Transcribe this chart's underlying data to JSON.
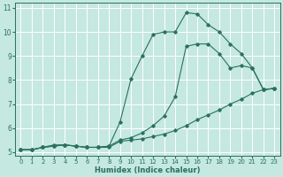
{
  "xlabel": "Humidex (Indice chaleur)",
  "bg_color": "#c5e8e0",
  "grid_color": "#ffffff",
  "line_color": "#2a7060",
  "xlim": [
    -0.5,
    23.5
  ],
  "ylim": [
    4.85,
    11.2
  ],
  "xticks": [
    0,
    1,
    2,
    3,
    4,
    5,
    6,
    7,
    8,
    9,
    10,
    11,
    12,
    13,
    14,
    15,
    16,
    17,
    18,
    19,
    20,
    21,
    22,
    23
  ],
  "yticks": [
    5,
    6,
    7,
    8,
    9,
    10,
    11
  ],
  "line1_x": [
    0,
    1,
    2,
    3,
    4,
    5,
    6,
    7,
    8,
    9,
    10,
    11,
    12,
    13,
    14,
    15,
    16,
    17,
    18,
    19,
    20,
    21,
    22,
    23
  ],
  "line1_y": [
    5.1,
    5.1,
    5.2,
    5.3,
    5.3,
    5.25,
    5.2,
    5.2,
    5.2,
    5.45,
    5.5,
    5.55,
    5.65,
    5.75,
    5.9,
    6.1,
    6.35,
    6.55,
    6.75,
    7.0,
    7.2,
    7.45,
    7.6,
    7.65
  ],
  "line2_x": [
    0,
    1,
    2,
    3,
    4,
    5,
    6,
    7,
    8,
    9,
    10,
    11,
    12,
    13,
    14,
    15,
    16,
    17,
    18,
    19,
    20,
    21,
    22,
    23
  ],
  "line2_y": [
    5.1,
    5.1,
    5.2,
    5.25,
    5.3,
    5.25,
    5.2,
    5.2,
    5.25,
    6.25,
    8.05,
    9.0,
    9.9,
    10.0,
    10.0,
    10.8,
    10.75,
    10.3,
    10.0,
    9.5,
    9.1,
    8.5,
    7.6,
    7.65
  ],
  "line3_x": [
    0,
    1,
    2,
    3,
    4,
    5,
    6,
    7,
    8,
    9,
    10,
    11,
    12,
    13,
    14,
    15,
    16,
    17,
    18,
    19,
    20,
    21,
    22,
    23
  ],
  "line3_y": [
    5.1,
    5.1,
    5.2,
    5.25,
    5.3,
    5.25,
    5.2,
    5.2,
    5.25,
    5.5,
    5.6,
    5.8,
    6.1,
    6.5,
    7.3,
    9.4,
    9.5,
    9.5,
    9.1,
    8.5,
    8.6,
    8.5,
    7.6,
    7.65
  ]
}
